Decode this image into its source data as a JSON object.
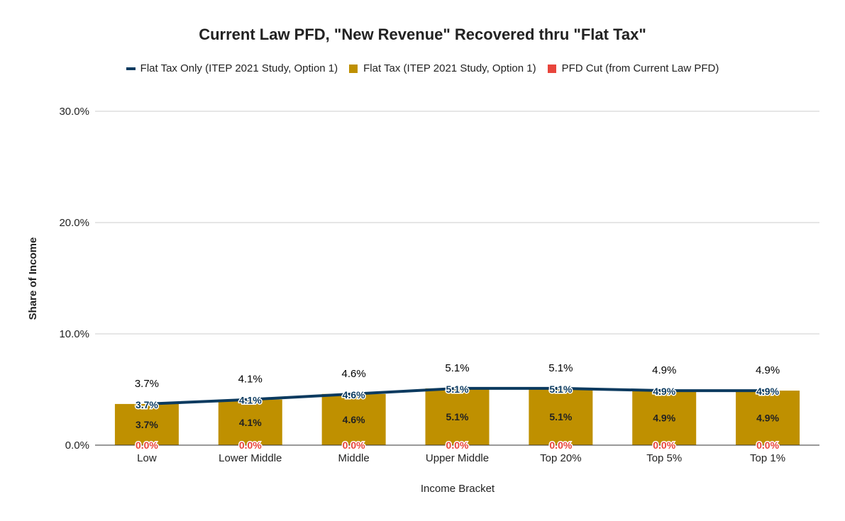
{
  "chart_data": {
    "type": "bar",
    "title": "Current Law PFD, \"New Revenue\" Recovered thru \"Flat Tax\"",
    "xlabel": "Income Bracket",
    "ylabel": "Share of Income",
    "ylim": [
      0,
      30
    ],
    "yticks": [
      "0.0%",
      "10.0%",
      "20.0%",
      "30.0%"
    ],
    "ytick_values": [
      0,
      10,
      20,
      30
    ],
    "grid": true,
    "legend_position": "top",
    "categories": [
      "Low",
      "Lower Middle",
      "Middle",
      "Upper Middle",
      "Top 20%",
      "Top 5%",
      "Top 1%"
    ],
    "series": [
      {
        "name": "Flat Tax Only (ITEP 2021 Study, Option 1)",
        "kind": "line",
        "color": "#0b3a5f",
        "values": [
          3.7,
          4.1,
          4.6,
          5.1,
          5.1,
          4.9,
          4.9
        ],
        "labels": [
          "3.7%",
          "4.1%",
          "4.6%",
          "5.1%",
          "5.1%",
          "4.9%",
          "4.9%"
        ]
      },
      {
        "name": "Flat Tax (ITEP 2021 Study, Option 1)",
        "kind": "bar",
        "color": "#bf9000",
        "values": [
          3.7,
          4.1,
          4.6,
          5.1,
          5.1,
          4.9,
          4.9
        ],
        "labels": [
          "3.7%",
          "4.1%",
          "4.6%",
          "5.1%",
          "5.1%",
          "4.9%",
          "4.9%"
        ]
      },
      {
        "name": "PFD Cut (from Current Law PFD)",
        "kind": "bar",
        "color": "#e8453c",
        "values": [
          0,
          0,
          0,
          0,
          0,
          0,
          0
        ],
        "labels": [
          "0.0%",
          "0.0%",
          "0.0%",
          "0.0%",
          "0.0%",
          "0.0%",
          "0.0%"
        ]
      }
    ],
    "total_labels": [
      "3.7%",
      "4.1%",
      "4.6%",
      "5.1%",
      "5.1%",
      "4.9%",
      "4.9%"
    ]
  }
}
